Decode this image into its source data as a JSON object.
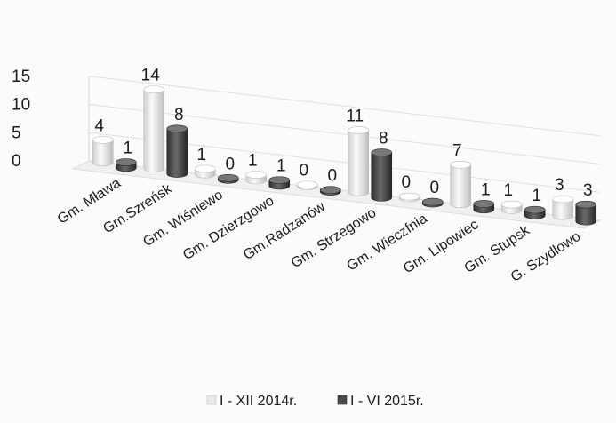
{
  "chart_data": {
    "type": "bar",
    "title": "",
    "xlabel": "",
    "ylabel": "",
    "ylim": [
      0,
      15
    ],
    "yticks": [
      0,
      5,
      10,
      15
    ],
    "grid": true,
    "legend_position": "bottom",
    "categories": [
      "Gm. Mława",
      "Gm.Szreńsk",
      "Gm. Wiśniewo",
      "Gm. Dzierzgowo",
      "Gm.Radzanów",
      "Gm. Strzegowo",
      "Gm. Wieczfnia",
      "Gm. Lipowiec",
      "Gm. Stupsk",
      "G. Szydłowo"
    ],
    "series": [
      {
        "name": "I - XII 2014r.",
        "color": "#e8e8e8",
        "values": [
          4,
          14,
          1,
          1,
          0,
          11,
          0,
          7,
          1,
          3
        ]
      },
      {
        "name": "I - VI 2015r.",
        "color": "#4a4a4a",
        "values": [
          1,
          8,
          0,
          1,
          0,
          8,
          0,
          1,
          1,
          3
        ]
      }
    ]
  }
}
